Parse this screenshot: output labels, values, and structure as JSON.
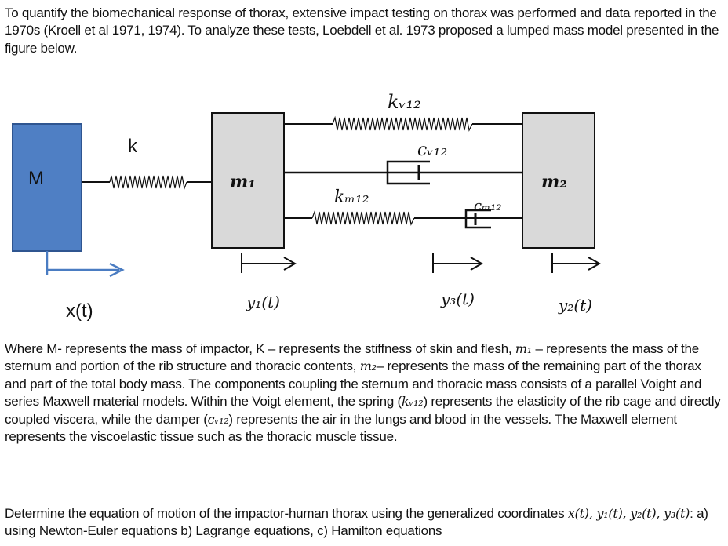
{
  "intro": "To quantify the biomechanical response of thorax, extensive impact testing on thorax was performed and data reported in the 1970s (Kroell et al 1971, 1974). To analyze these tests, Loebdell et al. 1973 proposed a lumped mass model presented in the figure below.",
  "diagram": {
    "mass_M": "M",
    "spring_k": "k",
    "mass_m1": "m₁",
    "mass_m2": "m₂",
    "spring_kv12": "kᵥ₁₂",
    "damper_cv12": "cᵥ₁₂",
    "spring_km12": "kₘ₁₂",
    "damper_cm12": "cₘ₁₂",
    "coord_x": "x(t)",
    "coord_y1": "y₁(t)",
    "coord_y3": "y₃(t)",
    "coord_y2": "y₂(t)",
    "colors": {
      "impactor_fill": "#4f7fc4",
      "impactor_stroke": "#2f5590",
      "mass_fill": "#d9d9d9",
      "arrow_blue": "#4a7cc2"
    }
  },
  "description": {
    "s1": "Where M- represents the mass of impactor, K – represents the stiffness of skin and flesh, ",
    "m1": "m₁",
    "s2": " – represents the mass of the sternum and portion of the rib structure and thoracic contents, ",
    "m2": "m₂",
    "s3": "– represents the mass of the remaining part of the thorax and part of the total body mass. The components coupling the sternum and thoracic mass consists of a parallel Voight and series Maxwell material models. Within the Voigt element, the spring (",
    "kv12": "kᵥ₁₂",
    "s4": ") represents the elasticity of the rib cage and directly coupled viscera, while the damper (",
    "cv12": "cᵥ₁₂",
    "s5": ") represents the air in the lungs and blood in the vessels. The Maxwell element represents the viscoelastic tissue such as the thoracic muscle tissue."
  },
  "task": {
    "s1": "Determine the equation of motion of the impactor-human thorax using the generalized coordinates ",
    "coords": "x(t), y₁(t), y₂(t), y₃(t)",
    "s2": ": a) using Newton-Euler equations b) Lagrange equations, c) Hamilton equations"
  }
}
